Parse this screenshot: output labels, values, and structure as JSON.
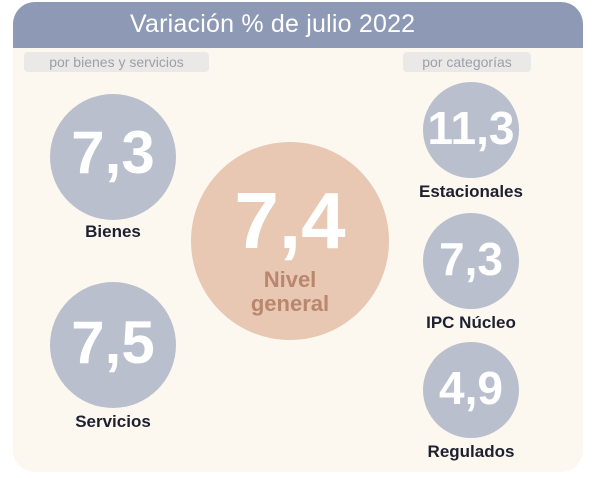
{
  "title": "Variación % de julio 2022",
  "left_tag": "por bienes y servicios",
  "right_tag": "por categorías",
  "center": {
    "value": "7,4",
    "label_line1": "Nivel",
    "label_line2": "general"
  },
  "left_items": [
    {
      "value": "7,3",
      "label": "Bienes"
    },
    {
      "value": "7,5",
      "label": "Servicios"
    }
  ],
  "right_items": [
    {
      "value": "11,3",
      "label": "Estacionales"
    },
    {
      "value": "7,3",
      "label": "IPC Núcleo"
    },
    {
      "value": "4,9",
      "label": "Regulados"
    }
  ],
  "colors": {
    "header": "#8e9ab5",
    "card_bg": "#fcf8ef",
    "small_circle": "#b9bfcd",
    "center_circle": "#e8c7b3",
    "center_label": "#b9876e"
  }
}
